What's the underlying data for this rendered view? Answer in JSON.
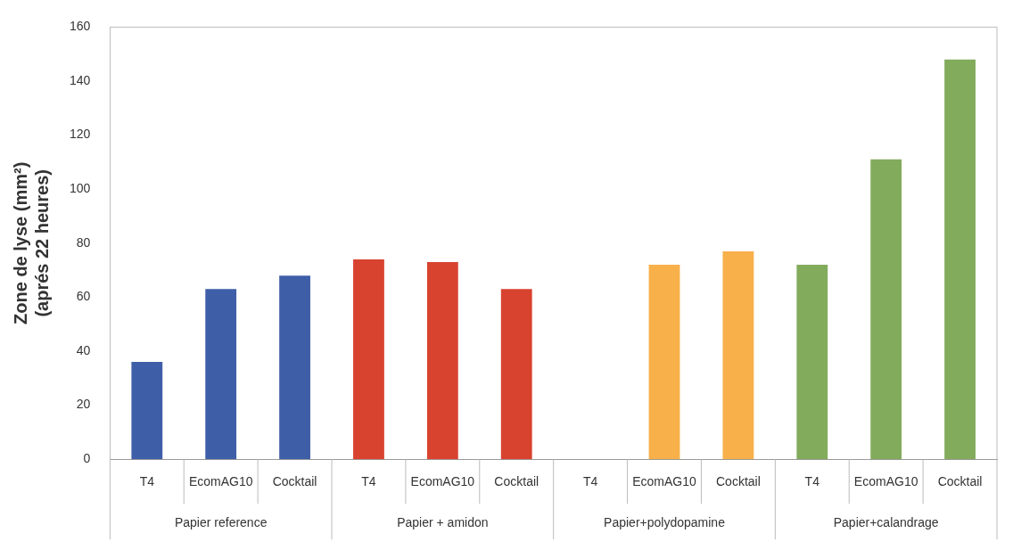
{
  "chart_data": {
    "type": "bar",
    "ylabel": "Zone de lyse (mm²)\n(aprés 22 heures)",
    "categories": [
      "T4",
      "EcomAG10",
      "Cocktail",
      "T4",
      "EcomAG10",
      "Cocktail",
      "T4",
      "EcomAG10",
      "Cocktail",
      "T4",
      "EcomAG10",
      "Cocktail"
    ],
    "values": [
      36,
      63,
      68,
      74,
      73,
      63,
      0,
      72,
      77,
      72,
      111,
      148
    ],
    "colors": [
      "#3f5ea8",
      "#3f5ea8",
      "#3f5ea8",
      "#d84330",
      "#d84330",
      "#d84330",
      "#f7b04a",
      "#f7b04a",
      "#f7b04a",
      "#82ab5c",
      "#82ab5c",
      "#82ab5c"
    ],
    "annotations": [
      "Papier reference",
      "Papier + amidon",
      "Papier+polydopamine",
      "Papier+calandrage"
    ],
    "ylim": [
      0,
      160
    ],
    "yticks": [
      0,
      20,
      40,
      60,
      80,
      100,
      120,
      140,
      160
    ],
    "grid": false,
    "legend": false
  }
}
